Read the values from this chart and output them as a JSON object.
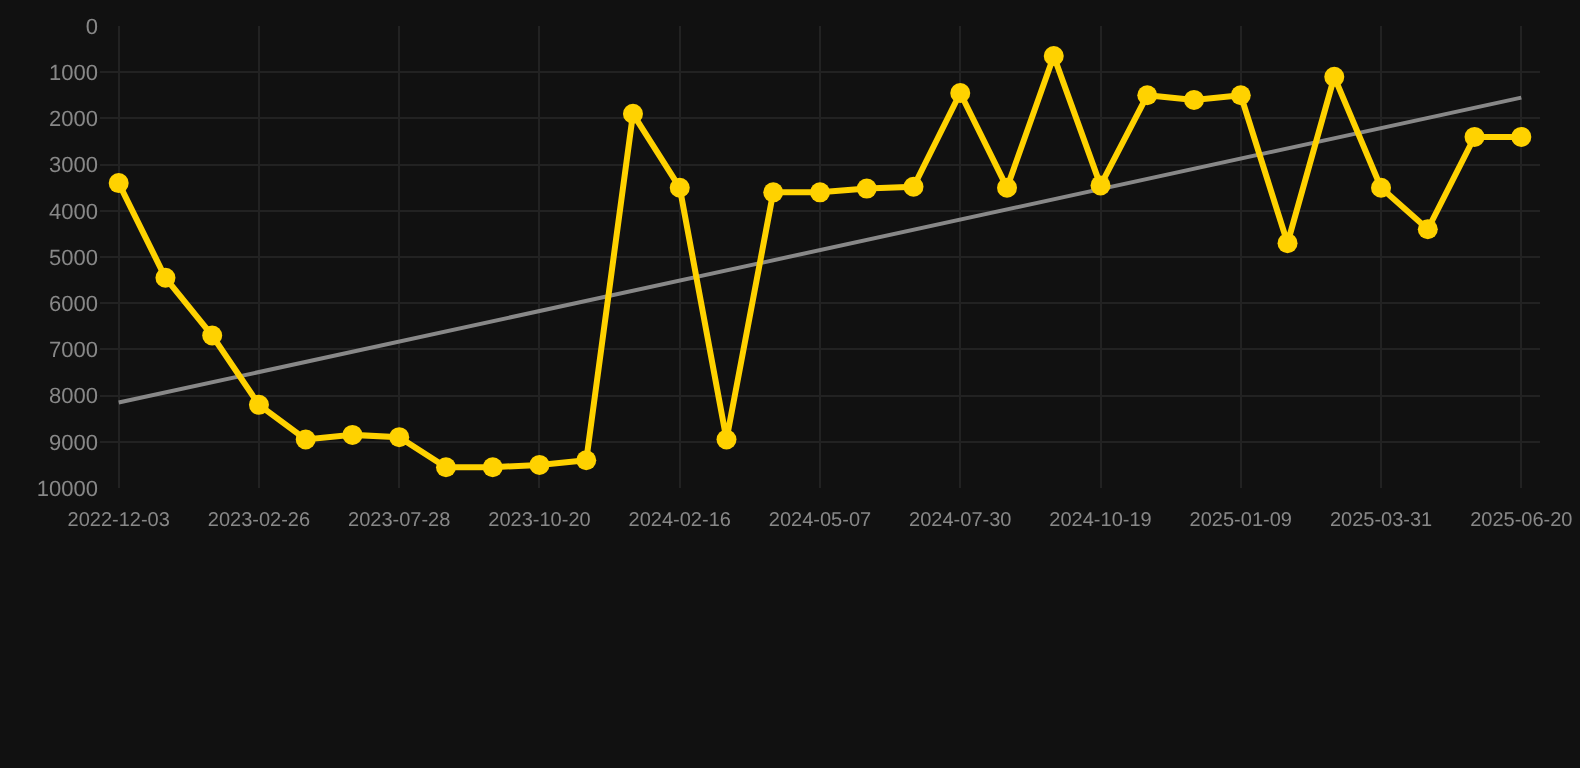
{
  "chart_data": {
    "type": "line",
    "categories": [
      "2022-12-03",
      null,
      null,
      "2023-02-26",
      null,
      null,
      "2023-07-28",
      null,
      null,
      "2023-10-20",
      null,
      null,
      "2024-02-16",
      null,
      null,
      "2024-05-07",
      null,
      null,
      "2024-07-30",
      null,
      null,
      "2024-10-19",
      null,
      null,
      "2025-01-09",
      null,
      null,
      "2025-03-31",
      null,
      null,
      "2025-06-20"
    ],
    "series": [
      {
        "color": "#ffd200",
        "marker": "circle",
        "values": [
          3400,
          5450,
          6700,
          8200,
          8950,
          8850,
          8900,
          9550,
          9550,
          9500,
          9400,
          1900,
          3500,
          8950,
          3600,
          3600,
          3520,
          3480,
          1450,
          3500,
          650,
          3450,
          1500,
          1600,
          1500,
          4700,
          1100,
          3500,
          4400,
          2400,
          2400
        ]
      },
      {
        "type": "line",
        "color": "#888888",
        "marker": "none",
        "values": [
          8150,
          null,
          null,
          null,
          null,
          null,
          null,
          null,
          null,
          null,
          null,
          null,
          null,
          null,
          null,
          null,
          null,
          null,
          null,
          null,
          null,
          null,
          null,
          null,
          null,
          null,
          null,
          null,
          null,
          null,
          1550
        ]
      }
    ],
    "ylim": [
      10000,
      0
    ],
    "yticks": [
      0,
      1000,
      2000,
      3000,
      4000,
      5000,
      6000,
      7000,
      8000,
      9000,
      10000
    ],
    "grid": true
  }
}
